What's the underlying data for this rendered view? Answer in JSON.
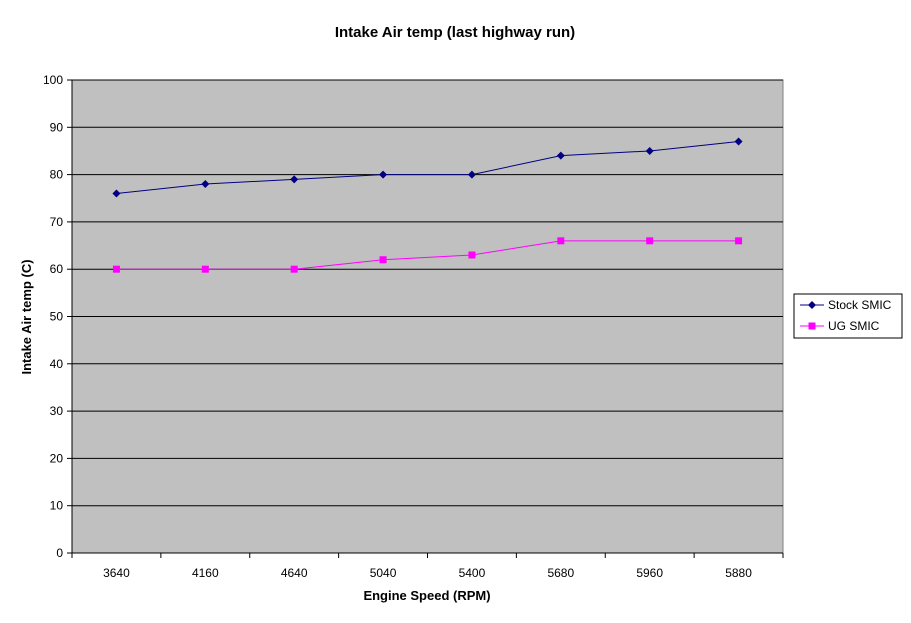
{
  "chart_data": {
    "type": "line",
    "title": "Intake Air temp (last highway run)",
    "xlabel": "Engine Speed (RPM)",
    "ylabel": "Intake Air temp (C)",
    "categories": [
      "3640",
      "4160",
      "4640",
      "5040",
      "5400",
      "5680",
      "5960",
      "5880"
    ],
    "ylim": [
      0,
      100
    ],
    "yticks": [
      0,
      10,
      20,
      30,
      40,
      50,
      60,
      70,
      80,
      90,
      100
    ],
    "grid": true,
    "legend_position": "right",
    "plot_background": "#c0c0c0",
    "series": [
      {
        "name": "Stock SMIC",
        "values": [
          76,
          78,
          79,
          80,
          80,
          84,
          85,
          87
        ],
        "color": "#000080",
        "marker": "diamond"
      },
      {
        "name": "UG SMIC",
        "values": [
          60,
          60,
          60,
          62,
          63,
          66,
          66,
          66
        ],
        "color": "#ff00ff",
        "marker": "square"
      }
    ]
  }
}
